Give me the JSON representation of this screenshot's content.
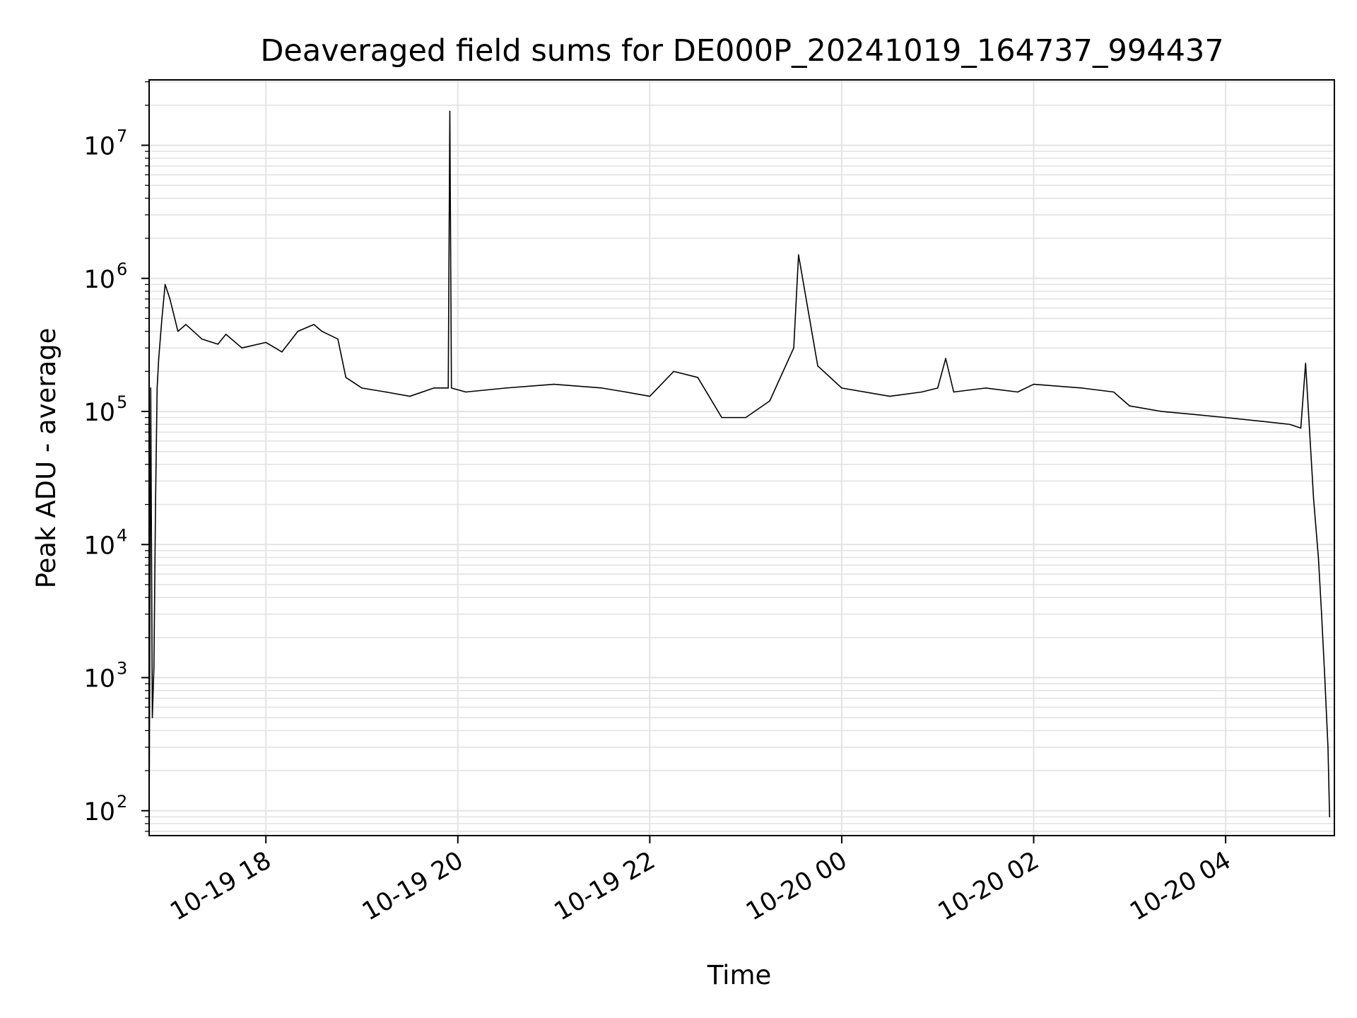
{
  "chart_data": {
    "type": "line",
    "title": "Deaveraged field sums for DE000P_20241019_164737_994437",
    "xlabel": "Time",
    "ylabel": "Peak ADU - average",
    "yscale": "log",
    "ylim": [
      65,
      31000000
    ],
    "xlim": [
      "2024-10-19 16:47",
      "2024-10-20 05:08"
    ],
    "grid": {
      "major": true,
      "minor_y": true
    },
    "colors": {
      "line": "#000000",
      "grid": "#e3e3e3",
      "axes": "#000000"
    },
    "x_ticks": [
      {
        "label": "10-19 18",
        "value": "2024-10-19 18:00"
      },
      {
        "label": "10-19 20",
        "value": "2024-10-19 20:00"
      },
      {
        "label": "10-19 22",
        "value": "2024-10-19 22:00"
      },
      {
        "label": "10-20 00",
        "value": "2024-10-20 00:00"
      },
      {
        "label": "10-20 02",
        "value": "2024-10-20 02:00"
      },
      {
        "label": "10-20 04",
        "value": "2024-10-20 04:00"
      }
    ],
    "y_ticks": [
      {
        "base": "10",
        "exp": "2",
        "value": 100
      },
      {
        "base": "10",
        "exp": "3",
        "value": 1000
      },
      {
        "base": "10",
        "exp": "4",
        "value": 10000
      },
      {
        "base": "10",
        "exp": "5",
        "value": 100000
      },
      {
        "base": "10",
        "exp": "6",
        "value": 1000000
      },
      {
        "base": "10",
        "exp": "7",
        "value": 10000000
      }
    ],
    "series": [
      {
        "x": [
          "2024-10-19 16:47",
          "2024-10-19 16:48",
          "2024-10-19 16:49",
          "2024-10-19 16:50",
          "2024-10-19 16:51",
          "2024-10-19 16:52",
          "2024-10-19 16:53",
          "2024-10-19 16:55",
          "2024-10-19 16:57",
          "2024-10-19 17:00",
          "2024-10-19 17:05",
          "2024-10-19 17:10",
          "2024-10-19 17:20",
          "2024-10-19 17:30",
          "2024-10-19 17:35",
          "2024-10-19 17:45",
          "2024-10-19 18:00",
          "2024-10-19 18:10",
          "2024-10-19 18:20",
          "2024-10-19 18:30",
          "2024-10-19 18:35",
          "2024-10-19 18:45",
          "2024-10-19 18:50",
          "2024-10-19 19:00",
          "2024-10-19 19:15",
          "2024-10-19 19:30",
          "2024-10-19 19:45",
          "2024-10-19 19:54",
          "2024-10-19 19:55",
          "2024-10-19 19:56",
          "2024-10-19 20:05",
          "2024-10-19 20:30",
          "2024-10-19 21:00",
          "2024-10-19 21:30",
          "2024-10-19 21:45",
          "2024-10-19 22:00",
          "2024-10-19 22:15",
          "2024-10-19 22:30",
          "2024-10-19 22:45",
          "2024-10-19 23:00",
          "2024-10-19 23:15",
          "2024-10-19 23:30",
          "2024-10-19 23:33",
          "2024-10-19 23:45",
          "2024-10-20 00:00",
          "2024-10-20 00:30",
          "2024-10-20 00:50",
          "2024-10-20 01:00",
          "2024-10-20 01:05",
          "2024-10-20 01:10",
          "2024-10-20 01:30",
          "2024-10-20 01:50",
          "2024-10-20 02:00",
          "2024-10-20 02:30",
          "2024-10-20 02:50",
          "2024-10-20 03:00",
          "2024-10-20 03:20",
          "2024-10-20 03:40",
          "2024-10-20 04:00",
          "2024-10-20 04:20",
          "2024-10-20 04:40",
          "2024-10-20 04:47",
          "2024-10-20 04:50",
          "2024-10-20 04:55",
          "2024-10-20 04:58",
          "2024-10-20 05:00",
          "2024-10-20 05:02",
          "2024-10-20 05:04",
          "2024-10-20 05:05"
        ],
        "y": [
          70,
          150000,
          500,
          1200,
          20000,
          150000,
          250000,
          500000,
          900000,
          700000,
          400000,
          450000,
          350000,
          320000,
          380000,
          300000,
          330000,
          280000,
          400000,
          450000,
          400000,
          350000,
          180000,
          150000,
          140000,
          130000,
          150000,
          150000,
          18000000,
          150000,
          140000,
          150000,
          160000,
          150000,
          140000,
          130000,
          200000,
          180000,
          90000,
          90000,
          120000,
          300000,
          1500000,
          220000,
          150000,
          130000,
          140000,
          150000,
          250000,
          140000,
          150000,
          140000,
          160000,
          150000,
          140000,
          110000,
          100000,
          95000,
          90000,
          85000,
          80000,
          75000,
          230000,
          22000,
          8000,
          3000,
          1000,
          300,
          90
        ]
      }
    ]
  }
}
